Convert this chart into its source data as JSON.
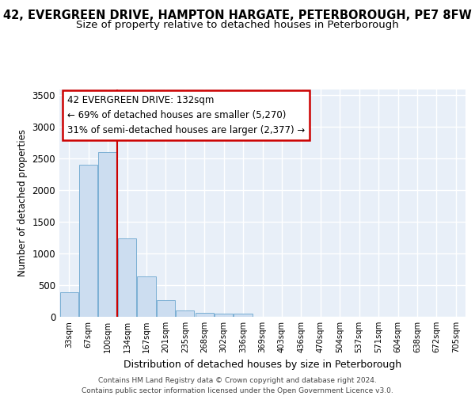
{
  "title_line1": "42, EVERGREEN DRIVE, HAMPTON HARGATE, PETERBOROUGH, PE7 8FW",
  "title_line2": "Size of property relative to detached houses in Peterborough",
  "xlabel": "Distribution of detached houses by size in Peterborough",
  "ylabel": "Number of detached properties",
  "footer_line1": "Contains HM Land Registry data © Crown copyright and database right 2024.",
  "footer_line2": "Contains public sector information licensed under the Open Government Licence v3.0.",
  "annotation_line1": "42 EVERGREEN DRIVE: 132sqm",
  "annotation_line2": "← 69% of detached houses are smaller (5,270)",
  "annotation_line3": "31% of semi-detached houses are larger (2,377) →",
  "bar_categories": [
    "33sqm",
    "67sqm",
    "100sqm",
    "134sqm",
    "167sqm",
    "201sqm",
    "235sqm",
    "268sqm",
    "302sqm",
    "336sqm",
    "369sqm",
    "403sqm",
    "436sqm",
    "470sqm",
    "504sqm",
    "537sqm",
    "571sqm",
    "604sqm",
    "638sqm",
    "672sqm",
    "705sqm"
  ],
  "bar_values": [
    390,
    2400,
    2600,
    1240,
    640,
    260,
    100,
    60,
    55,
    45,
    0,
    0,
    0,
    0,
    0,
    0,
    0,
    0,
    0,
    0,
    0
  ],
  "bar_color": "#ccddf0",
  "bar_edge_color": "#7bafd4",
  "red_line_color": "#cc0000",
  "ylim": [
    0,
    3600
  ],
  "yticks": [
    0,
    500,
    1000,
    1500,
    2000,
    2500,
    3000,
    3500
  ],
  "bg_color": "#e8eff8",
  "grid_color": "#ffffff",
  "title1_fontsize": 10.5,
  "title2_fontsize": 9.5,
  "annotation_box_color": "#ffffff",
  "annotation_box_edge": "#cc0000"
}
